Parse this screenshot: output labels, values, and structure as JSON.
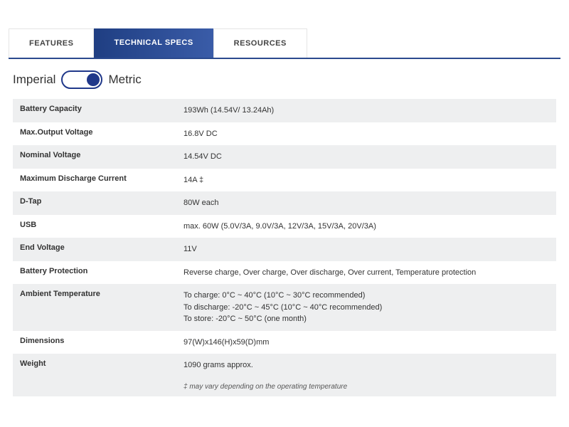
{
  "tabs": {
    "features": "FEATURES",
    "specs": "TECHNICAL SPECS",
    "resources": "RESOURCES"
  },
  "toggle": {
    "left": "Imperial",
    "right": "Metric"
  },
  "specs": [
    {
      "label": "Battery Capacity",
      "value": "193Wh (14.54V/ 13.24Ah)"
    },
    {
      "label": "Max.Output Voltage",
      "value": "16.8V DC"
    },
    {
      "label": "Nominal Voltage",
      "value": "14.54V DC"
    },
    {
      "label": "Maximum Discharge Current",
      "value": "14A ‡"
    },
    {
      "label": "D-Tap",
      "value": "80W each"
    },
    {
      "label": "USB",
      "value": " max. 60W (5.0V/3A, 9.0V/3A, 12V/3A, 15V/3A, 20V/3A)"
    },
    {
      "label": "End Voltage",
      "value": "11V"
    },
    {
      "label": "Battery Protection",
      "value": "Reverse charge, Over charge, Over discharge, Over current, Temperature protection"
    },
    {
      "label": "Ambient Temperature",
      "value": "To charge: 0°C ~ 40°C (10°C ~ 30°C recommended)\nTo discharge: -20°C ~ 45°C (10°C ~ 40°C recommended)\nTo store: -20°C ~ 50°C (one month)"
    },
    {
      "label": "Dimensions",
      "value": "97(W)x146(H)x59(D)mm"
    },
    {
      "label": "Weight",
      "value": "1090 grams approx."
    }
  ],
  "footnote": "‡ may vary depending on the operating temperature",
  "colors": {
    "tab_gradient_start": "#1f3e82",
    "tab_gradient_end": "#3a5ca8",
    "tab_underline": "#2b4a8e",
    "toggle_accent": "#20388a",
    "row_alt_bg": "#eeeff0",
    "text": "#333333"
  }
}
